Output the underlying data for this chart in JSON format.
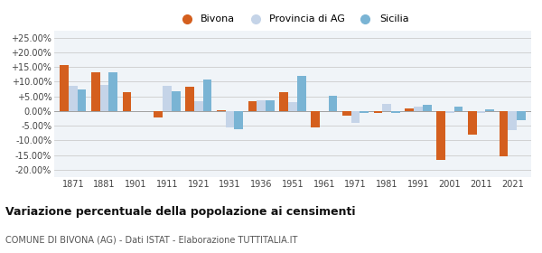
{
  "years": [
    1871,
    1881,
    1901,
    1911,
    1921,
    1931,
    1936,
    1951,
    1961,
    1971,
    1981,
    1991,
    2001,
    2011,
    2021
  ],
  "bivona": [
    0.158,
    0.133,
    0.065,
    -0.022,
    0.083,
    0.002,
    0.033,
    0.065,
    -0.055,
    -0.015,
    -0.005,
    0.01,
    -0.165,
    -0.08,
    -0.155
  ],
  "provincia": [
    0.086,
    0.09,
    0.0,
    0.086,
    0.035,
    -0.055,
    0.037,
    0.03,
    0.0,
    -0.04,
    0.025,
    0.015,
    -0.005,
    -0.005,
    -0.065
  ],
  "sicilia": [
    0.073,
    0.133,
    0.0,
    0.066,
    0.107,
    -0.063,
    0.038,
    0.12,
    0.053,
    -0.005,
    -0.005,
    0.02,
    0.015,
    0.005,
    -0.03
  ],
  "bivona_color": "#d45f1e",
  "provincia_color": "#c5d4e8",
  "sicilia_color": "#7ab4d4",
  "bg_color": "#ffffff",
  "plot_bg_color": "#f0f4f8",
  "title": "Variazione percentuale della popolazione ai censimenti",
  "subtitle": "COMUNE DI BIVONA (AG) - Dati ISTAT - Elaborazione TUTTITALIA.IT",
  "ylim": [
    -0.225,
    0.275
  ],
  "yticks": [
    -0.2,
    -0.15,
    -0.1,
    -0.05,
    0.0,
    0.05,
    0.1,
    0.15,
    0.2,
    0.25
  ],
  "ytick_labels": [
    "-20.00%",
    "-15.00%",
    "-10.00%",
    "-5.00%",
    "0.00%",
    "+5.00%",
    "+10.00%",
    "+15.00%",
    "+20.00%",
    "+25.00%"
  ],
  "bar_width": 0.28,
  "legend_fontsize": 8,
  "xtick_fontsize": 7,
  "ytick_fontsize": 7
}
